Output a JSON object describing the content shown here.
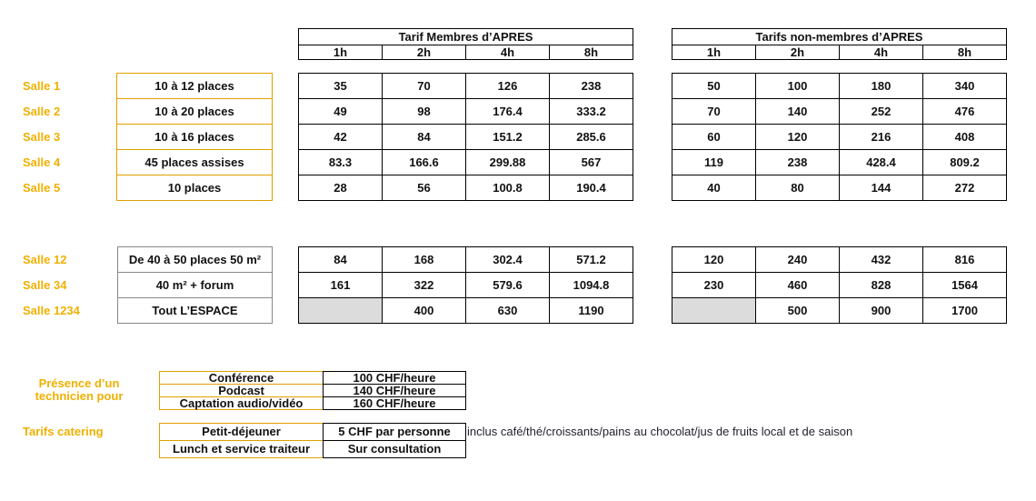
{
  "member_header": "Tarif Membres d’APRES",
  "nonmember_header": "Tarifs non-membres d’APRES",
  "durations": [
    "1h",
    "2h",
    "4h",
    "8h"
  ],
  "rooms": [
    {
      "name": "Salle 1",
      "capacity": "10 à 12 places",
      "members": [
        35,
        70,
        126,
        238
      ],
      "non_members": [
        50,
        100,
        180,
        340
      ]
    },
    {
      "name": "Salle 2",
      "capacity": "10 à 20 places",
      "members": [
        49,
        98,
        176.4,
        333.2
      ],
      "non_members": [
        70,
        140,
        252,
        476
      ]
    },
    {
      "name": "Salle 3",
      "capacity": "10 à 16 places",
      "members": [
        42,
        84,
        151.2,
        285.6
      ],
      "non_members": [
        60,
        120,
        216,
        408
      ]
    },
    {
      "name": "Salle 4",
      "capacity": "45 places assises",
      "members": [
        83.3,
        166.6,
        299.88,
        567
      ],
      "non_members": [
        119,
        238,
        428.4,
        809.2
      ]
    },
    {
      "name": "Salle 5",
      "capacity": "10 places",
      "members": [
        28,
        56,
        100.8,
        190.4
      ],
      "non_members": [
        40,
        80,
        144,
        272
      ]
    },
    {
      "name": "Salle 12",
      "capacity": "De 40 à 50 places 50 m²",
      "members": [
        84,
        168,
        302.4,
        571.2
      ],
      "non_members": [
        120,
        240,
        432,
        816
      ]
    },
    {
      "name": "Salle 34",
      "capacity": "40 m² + forum",
      "members": [
        161,
        322,
        579.6,
        1094.8
      ],
      "non_members": [
        230,
        460,
        828,
        1564
      ]
    },
    {
      "name": "Salle 1234",
      "capacity": "Tout L’ESPACE",
      "members": [
        null,
        400,
        630,
        1190
      ],
      "non_members": [
        null,
        500,
        900,
        1700
      ]
    }
  ],
  "technician": {
    "label": "Présence d’un technicien pour",
    "services": [
      {
        "name": "Conférence",
        "price": "100 CHF/heure"
      },
      {
        "name": "Podcast",
        "price": "140 CHF/heure"
      },
      {
        "name": "Captation audio/vidéo",
        "price": "160 CHF/heure"
      }
    ]
  },
  "catering": {
    "label": "Tarifs catering",
    "items": [
      {
        "name": "Petit-déjeuner",
        "price": "5 CHF par personne",
        "note": "inclus café/thé/croissants/pains au chocolat/jus de fruits local et de saison"
      },
      {
        "name": "Lunch et service traiteur",
        "price": "Sur consultation"
      }
    ]
  }
}
